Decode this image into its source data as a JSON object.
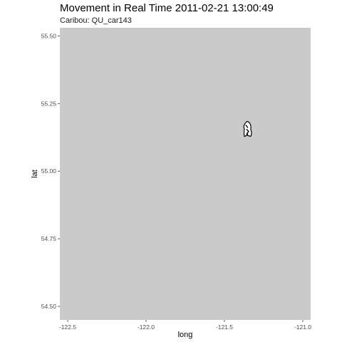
{
  "chart_data": {
    "type": "scatter",
    "title": "Movement in Real Time 2011-02-21 13:00:49",
    "subtitle": "Caribou: QU_car143",
    "xlabel": "long",
    "ylabel": "lat",
    "xlim": [
      -122.55,
      -120.95
    ],
    "ylim": [
      54.45,
      55.53
    ],
    "xticks": [
      -122.5,
      -122.0,
      -121.5,
      -121.0
    ],
    "xtick_labels": [
      "-122.5",
      "-122.0",
      "-121.5",
      "-121.0"
    ],
    "yticks": [
      54.5,
      54.75,
      55.0,
      55.25,
      55.5
    ],
    "ytick_labels": [
      "54.50",
      "54.75",
      "55.00",
      "55.25",
      "55.50"
    ],
    "grid": false,
    "panel_color": "#cacaca",
    "point_color": "#000000",
    "point_fill": "#ffffff",
    "marker_icon": "caribou-icon",
    "points": [
      {
        "x": -121.355,
        "y": 55.155
      }
    ]
  }
}
